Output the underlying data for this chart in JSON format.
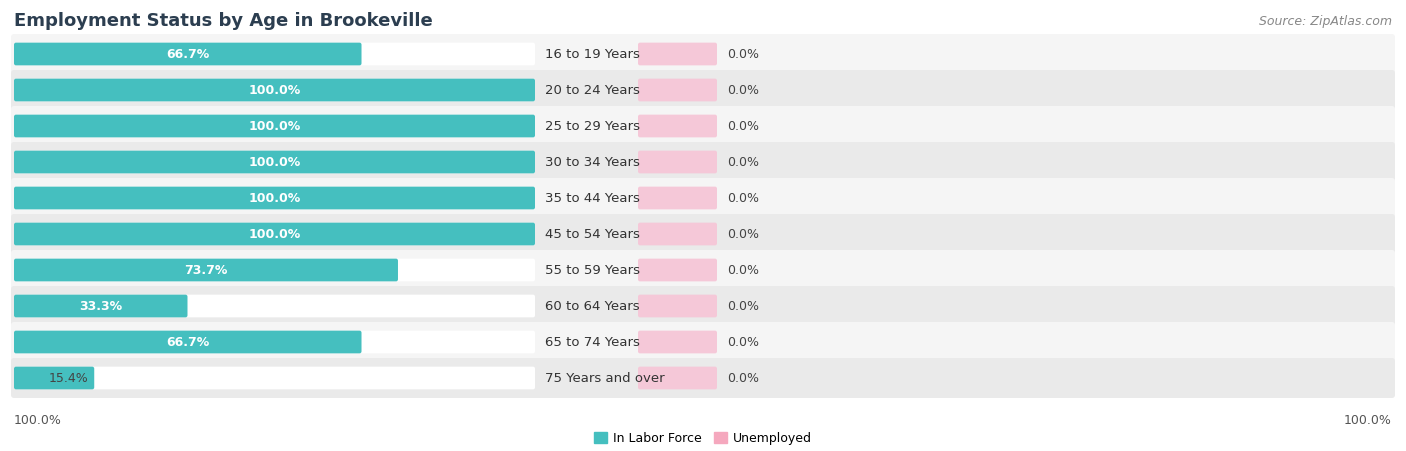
{
  "title": "Employment Status by Age in Brookeville",
  "source": "Source: ZipAtlas.com",
  "categories": [
    "16 to 19 Years",
    "20 to 24 Years",
    "25 to 29 Years",
    "30 to 34 Years",
    "35 to 44 Years",
    "45 to 54 Years",
    "55 to 59 Years",
    "60 to 64 Years",
    "65 to 74 Years",
    "75 Years and over"
  ],
  "labor_force": [
    66.7,
    100.0,
    100.0,
    100.0,
    100.0,
    100.0,
    73.7,
    33.3,
    66.7,
    15.4
  ],
  "unemployed": [
    0.0,
    0.0,
    0.0,
    0.0,
    0.0,
    0.0,
    0.0,
    0.0,
    0.0,
    0.0
  ],
  "labor_force_color": "#45BFBF",
  "unemployed_color": "#F5A8BE",
  "row_light_color": "#F5F5F5",
  "row_dark_color": "#EAEAEA",
  "bar_bg_color": "#FFFFFF",
  "unemp_bg_color": "#F5C8D8",
  "title_fontsize": 13,
  "source_fontsize": 9,
  "label_fontsize": 9,
  "legend_fontsize": 9,
  "x_left_label": "100.0%",
  "x_right_label": "100.0%"
}
